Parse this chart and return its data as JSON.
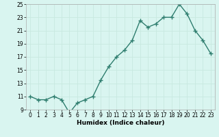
{
  "x": [
    0,
    1,
    2,
    3,
    4,
    5,
    6,
    7,
    8,
    9,
    10,
    11,
    12,
    13,
    14,
    15,
    16,
    17,
    18,
    19,
    20,
    21,
    22,
    23
  ],
  "y": [
    11,
    10.5,
    10.5,
    11,
    10.5,
    8.5,
    10,
    10.5,
    11,
    13.5,
    15.5,
    17,
    18,
    19.5,
    22.5,
    21.5,
    22,
    23,
    23,
    25,
    23.5,
    21,
    19.5,
    17.5
  ],
  "line_color": "#2e7d6e",
  "marker": "+",
  "marker_size": 4,
  "bg_color": "#d9f5f0",
  "grid_color": "#c8e8e0",
  "xlabel": "Humidex (Indice chaleur)",
  "ylim": [
    9,
    25
  ],
  "xlim": [
    -0.5,
    23.5
  ],
  "yticks": [
    9,
    11,
    13,
    15,
    17,
    19,
    21,
    23,
    25
  ],
  "xticks": [
    0,
    1,
    2,
    3,
    4,
    5,
    6,
    7,
    8,
    9,
    10,
    11,
    12,
    13,
    14,
    15,
    16,
    17,
    18,
    19,
    20,
    21,
    22,
    23
  ],
  "xtick_labels": [
    "0",
    "1",
    "2",
    "3",
    "4",
    "5",
    "6",
    "7",
    "8",
    "9",
    "10",
    "11",
    "12",
    "13",
    "14",
    "15",
    "16",
    "17",
    "18",
    "19",
    "20",
    "21",
    "22",
    "23"
  ],
  "line_width": 1.0,
  "tick_fontsize": 5.5,
  "xlabel_fontsize": 6.5
}
